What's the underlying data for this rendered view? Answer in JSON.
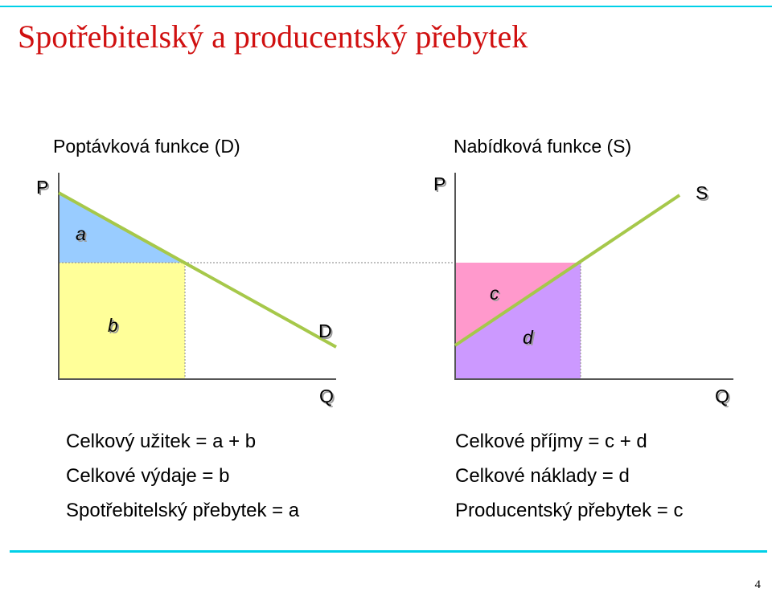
{
  "slide": {
    "title": "Spotřebitelský a producentský přebytek",
    "page_number": "4"
  },
  "colors": {
    "title": "#d01010",
    "accent_line": "#00d0e8",
    "curve": "#a6c84a",
    "area_a": "#99ccff",
    "area_b": "#ffff99",
    "area_c": "#ff99cc",
    "area_d": "#cc99ff"
  },
  "left_graph": {
    "caption": "Poptávková funkce (D)",
    "y_axis": "P",
    "x_axis": "Q",
    "curve_label": "D",
    "area_a": "a",
    "area_b": "b"
  },
  "right_graph": {
    "caption": "Nabídková funkce (S)",
    "y_axis": "P",
    "x_axis": "Q",
    "curve_label": "S",
    "area_c": "c",
    "area_d": "d"
  },
  "left_text": [
    "Celkový užitek = a + b",
    "Celkové výdaje = b",
    "Spotřebitelský přebytek = a"
  ],
  "right_text": [
    "Celkové příjmy = c + d",
    "Celkové náklady = d",
    "Producentský přebytek = c"
  ]
}
